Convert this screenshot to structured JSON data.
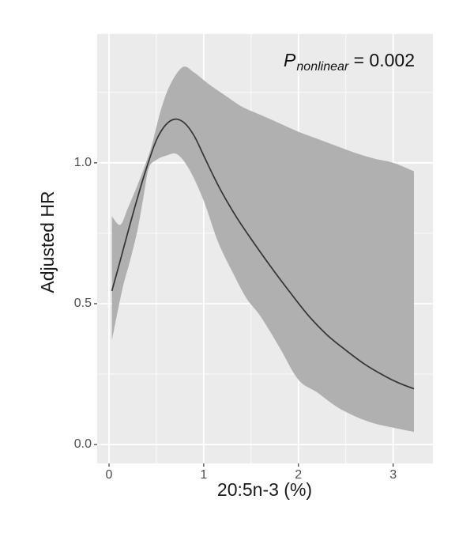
{
  "figure": {
    "annotation": {
      "p_symbol": "P",
      "p_subscript": "nonlinear",
      "p_value_text": " = 0.002"
    },
    "y_axis": {
      "title": "Adjusted HR",
      "tick_labels": [
        "0.0",
        "0.5",
        "1.0"
      ],
      "tick_values": [
        0,
        0.5,
        1.0
      ],
      "minor_values": [
        0.25,
        0.75,
        1.25
      ]
    },
    "x_axis": {
      "title": "20:5n-3 (%)",
      "tick_labels": [
        "0",
        "1",
        "2",
        "3"
      ],
      "tick_values": [
        0,
        1,
        2,
        3
      ],
      "minor_values": [
        0.5,
        1.5,
        2.5
      ]
    }
  },
  "chart_data": {
    "type": "line",
    "title": "",
    "xlabel": "20:5n-3 (%)",
    "ylabel": "Adjusted HR",
    "xlim": [
      -0.125,
      3.42
    ],
    "ylim": [
      -0.067,
      1.457
    ],
    "grid": "white-on-grey (ggplot style), major at x 0..3 / y 0,0.5,1.0, minor at halves/quarters",
    "legend": "none",
    "annotation": "P_nonlinear = 0.002",
    "series": [
      {
        "name": "adjusted_hr_curve",
        "role": "estimate",
        "x": [
          0.03,
          0.1,
          0.2,
          0.3,
          0.4,
          0.5,
          0.6,
          0.7,
          0.8,
          0.9,
          1.0,
          1.1,
          1.2,
          1.35,
          1.5,
          1.7,
          1.9,
          2.1,
          2.3,
          2.5,
          2.7,
          2.9,
          3.05,
          3.22
        ],
        "y": [
          0.545,
          0.63,
          0.755,
          0.875,
          0.985,
          1.08,
          1.135,
          1.155,
          1.14,
          1.095,
          1.025,
          0.955,
          0.89,
          0.805,
          0.73,
          0.635,
          0.545,
          0.46,
          0.39,
          0.335,
          0.285,
          0.245,
          0.22,
          0.198
        ]
      },
      {
        "name": "ci_upper",
        "role": "confidence-band-upper",
        "x": [
          0.03,
          0.12,
          0.2,
          0.3,
          0.38,
          0.45,
          0.55,
          0.65,
          0.78,
          0.9,
          1.05,
          1.2,
          1.4,
          1.6,
          1.8,
          2.0,
          2.2,
          2.4,
          2.6,
          2.8,
          3.0,
          3.22
        ],
        "y": [
          0.81,
          0.78,
          0.84,
          0.92,
          0.99,
          1.06,
          1.19,
          1.28,
          1.34,
          1.32,
          1.28,
          1.245,
          1.2,
          1.17,
          1.14,
          1.11,
          1.085,
          1.06,
          1.035,
          1.015,
          1.0,
          0.97
        ]
      },
      {
        "name": "ci_lower",
        "role": "confidence-band-lower",
        "x": [
          0.03,
          0.14,
          0.22,
          0.3,
          0.36,
          0.42,
          0.5,
          0.6,
          0.72,
          0.85,
          1.0,
          1.15,
          1.3,
          1.45,
          1.6,
          1.8,
          2.0,
          2.2,
          2.4,
          2.6,
          2.8,
          3.0,
          3.22
        ],
        "y": [
          0.37,
          0.55,
          0.65,
          0.76,
          0.87,
          0.98,
          1.01,
          1.025,
          1.03,
          0.975,
          0.865,
          0.72,
          0.615,
          0.52,
          0.455,
          0.345,
          0.23,
          0.185,
          0.135,
          0.1,
          0.075,
          0.06,
          0.045
        ]
      }
    ],
    "colors": {
      "outer_bg": "#ffffff",
      "panel_bg": "#ebebeb",
      "band": "#b0b0b0",
      "line": "#333333",
      "grid": "#ffffff",
      "tick_mark": "#333333",
      "tick_label": "#4d4d4d",
      "axis_title": "#1a1a1a"
    }
  }
}
